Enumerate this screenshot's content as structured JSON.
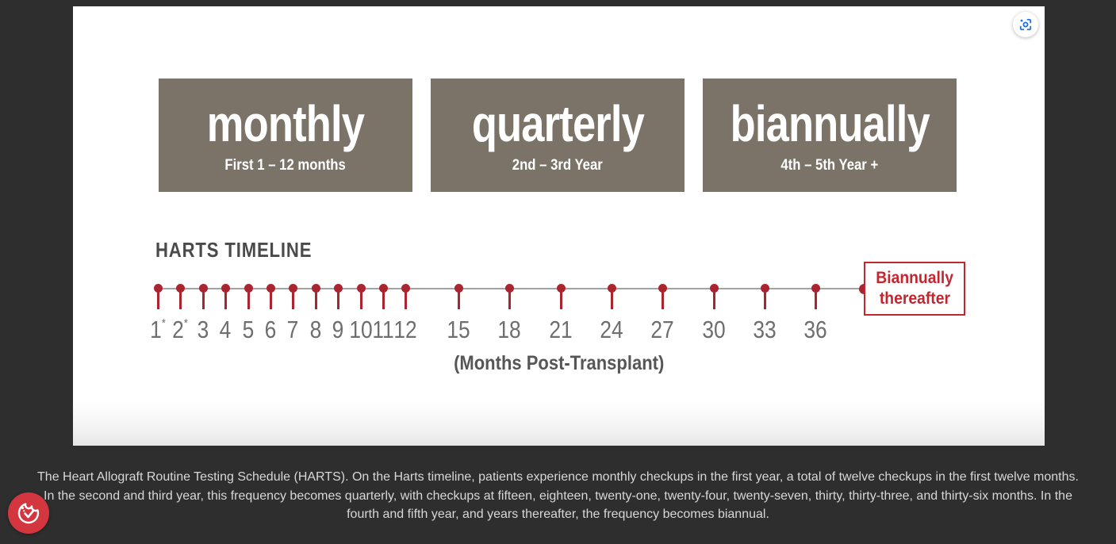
{
  "colors": {
    "background": "#2e2e2e",
    "panel": "#ffffff",
    "period_box_bg": "#7b7268",
    "timeline_red": "#ab2531",
    "callout_red": "#c22730",
    "axis_line_gray": "#a2a2a2",
    "tick_label_gray": "#6e6e6e",
    "heading_gray": "#4a4a4a",
    "caption_gray": "#d7d7d7",
    "capture_icon_blue": "#1a73e8",
    "logo_red": "#d3363f"
  },
  "icons": {
    "capture_button": "lens-capture-icon",
    "logo": "cookie-check-icon"
  },
  "periods": [
    {
      "title": "monthly",
      "subtitle": "First 1 – 12 months"
    },
    {
      "title": "quarterly",
      "subtitle": "2nd – 3rd Year"
    },
    {
      "title": "biannually",
      "subtitle": "4th – 5th Year +"
    }
  ],
  "timeline": {
    "heading": "HARTS TIMELINE",
    "axis_label": "(Months Post-Transplant)",
    "end_label_line1": "Biannually",
    "end_label_line2": "thereafter",
    "ticks": [
      {
        "label": "1",
        "asterisk": true
      },
      {
        "label": "2",
        "asterisk": true
      },
      {
        "label": "3"
      },
      {
        "label": "4"
      },
      {
        "label": "5"
      },
      {
        "label": "6"
      },
      {
        "label": "7"
      },
      {
        "label": "8"
      },
      {
        "label": "9"
      },
      {
        "label": "10"
      },
      {
        "label": "11"
      },
      {
        "label": "12"
      },
      {
        "label": "15"
      },
      {
        "label": "18"
      },
      {
        "label": "21"
      },
      {
        "label": "24"
      },
      {
        "label": "27"
      },
      {
        "label": "30"
      },
      {
        "label": "33"
      },
      {
        "label": "36"
      }
    ]
  },
  "caption": "The Heart Allograft Routine Testing Schedule (HARTS). On the Harts timeline, patients experience monthly checkups in the first year, a total of twelve checkups in the first twelve months. In the second and third year, this frequency becomes quarterly, with checkups at fifteen, eighteen, twenty-one, twenty-four, twenty-seven, thirty, thirty-three, and thirty-six months. In the fourth and fifth year, and years thereafter, the frequency becomes biannual."
}
